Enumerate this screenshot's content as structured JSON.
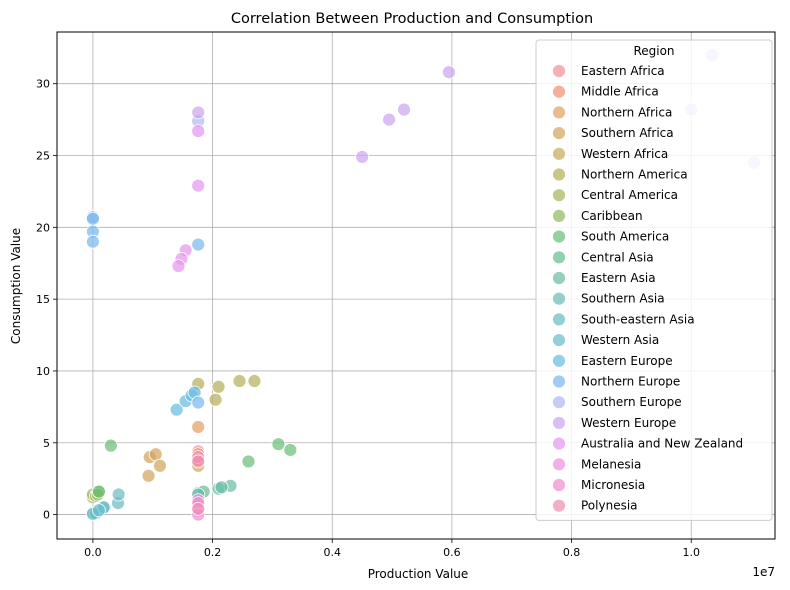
{
  "chart_data": {
    "type": "scatter",
    "title": "Correlation Between Production and Consumption",
    "xlabel": "Production Value",
    "ylabel": "Consumption Value",
    "x_offset_label": "1e7",
    "xlim": [
      -0.06,
      1.14
    ],
    "ylim": [
      -1.7,
      33.6
    ],
    "x_ticks": [
      0.0,
      0.2,
      0.4,
      0.6,
      0.8,
      1.0
    ],
    "x_tick_labels": [
      "0.0",
      "0.2",
      "0.4",
      "0.6",
      "0.8",
      "1.0"
    ],
    "y_ticks": [
      0,
      5,
      10,
      15,
      20,
      25,
      30
    ],
    "y_tick_labels": [
      "0",
      "5",
      "10",
      "15",
      "20",
      "25",
      "30"
    ],
    "grid": true,
    "legend_title": "Region",
    "legend_position": "top-right",
    "series": [
      {
        "name": "Eastern Africa",
        "color": "#f2909a",
        "points": [
          [
            0.176,
            4.4
          ]
        ]
      },
      {
        "name": "Middle Africa",
        "color": "#ef9375",
        "points": [
          [
            0.176,
            4.2
          ]
        ]
      },
      {
        "name": "Northern Africa",
        "color": "#e2a160",
        "points": [
          [
            0.176,
            6.1
          ]
        ]
      },
      {
        "name": "Southern Africa",
        "color": "#d3a55e",
        "points": [
          [
            0.095,
            4.0
          ],
          [
            0.105,
            4.2
          ],
          [
            0.112,
            3.4
          ],
          [
            0.093,
            2.7
          ]
        ]
      },
      {
        "name": "Western Africa",
        "color": "#c8aa5e",
        "points": [
          [
            0.176,
            3.4
          ],
          [
            0.176,
            3.8
          ]
        ]
      },
      {
        "name": "Northern America",
        "color": "#b6b05d",
        "points": [
          [
            0.176,
            9.1
          ],
          [
            0.21,
            8.9
          ],
          [
            0.245,
            9.3
          ],
          [
            0.27,
            9.3
          ],
          [
            0.205,
            8.0
          ]
        ]
      },
      {
        "name": "Central America",
        "color": "#a5b75e",
        "points": [
          [
            0.0,
            1.2
          ],
          [
            0.0,
            1.4
          ],
          [
            0.005,
            1.3
          ]
        ]
      },
      {
        "name": "Caribbean",
        "color": "#8ebb5f",
        "points": [
          [
            0.01,
            1.5
          ],
          [
            0.01,
            1.6
          ],
          [
            0.008,
            1.4
          ]
        ]
      },
      {
        "name": "South America",
        "color": "#6cbf76",
        "points": [
          [
            0.03,
            4.8
          ],
          [
            0.31,
            4.9
          ],
          [
            0.33,
            4.5
          ],
          [
            0.26,
            3.7
          ],
          [
            0.01,
            1.6
          ]
        ]
      },
      {
        "name": "Central Asia",
        "color": "#69bd93",
        "points": [
          [
            0.176,
            1.5
          ],
          [
            0.185,
            1.6
          ]
        ]
      },
      {
        "name": "Eastern Asia",
        "color": "#6bbda6",
        "points": [
          [
            0.21,
            1.8
          ],
          [
            0.23,
            2.0
          ],
          [
            0.215,
            1.9
          ]
        ]
      },
      {
        "name": "Southern Asia",
        "color": "#6cbcb4",
        "points": [
          [
            0.0,
            0.1
          ],
          [
            0.005,
            0.1
          ],
          [
            0.176,
            1.4
          ]
        ]
      },
      {
        "name": "South-eastern Asia",
        "color": "#6cbcc2",
        "points": [
          [
            0.02,
            0.5
          ],
          [
            0.042,
            0.8
          ],
          [
            0.043,
            1.4
          ],
          [
            0.018,
            0.5
          ]
        ]
      },
      {
        "name": "Western Asia",
        "color": "#6bbcd0",
        "points": [
          [
            0.0,
            0.05
          ],
          [
            0.01,
            0.3
          ]
        ]
      },
      {
        "name": "Eastern Europe",
        "color": "#6bbde0",
        "points": [
          [
            0.14,
            7.3
          ],
          [
            0.155,
            7.9
          ],
          [
            0.165,
            8.3
          ],
          [
            0.17,
            8.5
          ]
        ]
      },
      {
        "name": "Northern Europe",
        "color": "#7bb8ee",
        "points": [
          [
            0.0,
            20.7
          ],
          [
            0.0,
            20.6
          ],
          [
            0.0,
            19.7
          ],
          [
            0.0,
            19.0
          ],
          [
            0.176,
            18.8
          ],
          [
            0.176,
            7.8
          ]
        ]
      },
      {
        "name": "Southern Europe",
        "color": "#b1b7f4",
        "points": [
          [
            0.176,
            27.4
          ],
          [
            1.035,
            32.0
          ],
          [
            1.0,
            28.2
          ],
          [
            1.105,
            24.5
          ]
        ]
      },
      {
        "name": "Western Europe",
        "color": "#cba6f0",
        "points": [
          [
            0.176,
            28.0
          ],
          [
            0.45,
            24.9
          ],
          [
            0.495,
            27.5
          ],
          [
            0.52,
            28.2
          ],
          [
            0.595,
            30.8
          ]
        ]
      },
      {
        "name": "Australia and New Zealand",
        "color": "#e597ef",
        "points": [
          [
            0.176,
            26.7
          ],
          [
            0.176,
            22.9
          ],
          [
            0.155,
            18.4
          ],
          [
            0.148,
            17.8
          ],
          [
            0.143,
            17.3
          ]
        ]
      },
      {
        "name": "Melanesia",
        "color": "#ef90e0",
        "points": [
          [
            0.176,
            0.6
          ],
          [
            0.176,
            0.3
          ]
        ]
      },
      {
        "name": "Micronesia",
        "color": "#f08fcf",
        "points": [
          [
            0.176,
            1.0
          ],
          [
            0.176,
            0.8
          ],
          [
            0.176,
            0.0
          ]
        ]
      },
      {
        "name": "Polynesia",
        "color": "#f08fb4",
        "points": [
          [
            0.176,
            4.0
          ],
          [
            0.176,
            3.7
          ],
          [
            0.176,
            0.4
          ]
        ]
      }
    ]
  }
}
